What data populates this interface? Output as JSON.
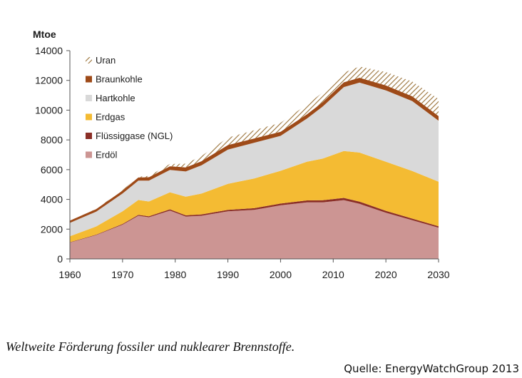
{
  "caption": "Weltweite Förderung fossiler und nuklearer Brennstoffe.",
  "source": "Quelle: EnergyWatchGroup 2013",
  "chart_data": {
    "type": "area",
    "stacked": true,
    "ylabel": "Mtoe",
    "xlim": [
      1960,
      2030
    ],
    "ylim": [
      0,
      14000
    ],
    "x_ticks": [
      1960,
      1970,
      1980,
      1990,
      2000,
      2010,
      2020,
      2030
    ],
    "y_ticks": [
      0,
      2000,
      4000,
      6000,
      8000,
      10000,
      12000,
      14000
    ],
    "x_tick_labels": [
      "1960",
      "1970",
      "1980",
      "1990",
      "2000",
      "2010",
      "2020",
      "2030"
    ],
    "y_tick_labels": [
      "0",
      "2000",
      "4000",
      "6000",
      "8000",
      "10000",
      "12000",
      "14000"
    ],
    "legend_position": "top-left",
    "x": [
      1960,
      1965,
      1970,
      1973,
      1975,
      1979,
      1982,
      1985,
      1990,
      1995,
      2000,
      2005,
      2008,
      2012,
      2015,
      2020,
      2025,
      2030
    ],
    "series": [
      {
        "name": "Erdöl",
        "color": "#cc9593",
        "values": [
          1100,
          1600,
          2300,
          2900,
          2800,
          3250,
          2850,
          2900,
          3200,
          3300,
          3600,
          3800,
          3800,
          3950,
          3700,
          3100,
          2600,
          2100
        ]
      },
      {
        "name": "Flüssiggase (NGL)",
        "color": "#8b2f27",
        "values": [
          20,
          30,
          50,
          60,
          60,
          80,
          80,
          90,
          100,
          110,
          120,
          130,
          140,
          150,
          150,
          130,
          110,
          90
        ]
      },
      {
        "name": "Erdgas",
        "color": "#f4bb33",
        "values": [
          400,
          550,
          850,
          1000,
          1000,
          1150,
          1250,
          1400,
          1750,
          2000,
          2200,
          2600,
          2800,
          3150,
          3300,
          3300,
          3200,
          3000
        ]
      },
      {
        "name": "Hartkohle",
        "color": "#d9d9d9",
        "values": [
          900,
          1000,
          1200,
          1300,
          1400,
          1500,
          1700,
          1900,
          2300,
          2400,
          2350,
          2900,
          3500,
          4300,
          4700,
          4800,
          4700,
          4100
        ]
      },
      {
        "name": "Braunkohle",
        "color": "#9e4a18",
        "values": [
          150,
          170,
          200,
          220,
          230,
          250,
          270,
          280,
          300,
          290,
          280,
          290,
          300,
          320,
          330,
          330,
          320,
          310
        ]
      },
      {
        "name": "Uran",
        "color": "#d6b26e",
        "pattern": "hatched",
        "values": [
          0,
          10,
          30,
          50,
          80,
          150,
          250,
          350,
          500,
          550,
          600,
          650,
          650,
          650,
          750,
          900,
          1000,
          1150
        ]
      }
    ],
    "legend_order": [
      "Uran",
      "Braunkohle",
      "Hartkohle",
      "Erdgas",
      "Flüssiggase (NGL)",
      "Erdöl"
    ]
  }
}
